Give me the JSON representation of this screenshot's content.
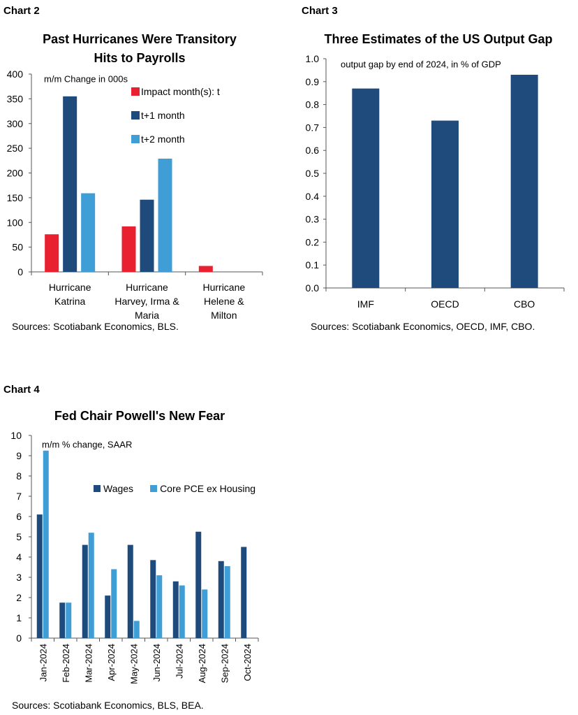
{
  "chart_data": [
    {
      "type": "bar",
      "label": "Chart 2",
      "title": "Past Hurricanes Were Transitory",
      "subtitle": "Hits to Payrolls",
      "ylabel": "m/m Change in 000s",
      "ylim": [
        0,
        400
      ],
      "yticks": [
        "0",
        "50",
        "100",
        "150",
        "200",
        "250",
        "300",
        "350",
        "400"
      ],
      "categories": [
        [
          "Hurricane",
          "Katrina"
        ],
        [
          "Hurricane",
          "Harvey, Irma &",
          "Maria"
        ],
        [
          "Hurricane",
          "Helene &",
          "Milton"
        ]
      ],
      "series": [
        {
          "name": "Impact month(s): t",
          "color": "#e8202f",
          "values": [
            76,
            92,
            12
          ]
        },
        {
          "name": "t+1 month",
          "color": "#1e4a7c",
          "values": [
            355,
            146,
            null
          ]
        },
        {
          "name": "t+2 month",
          "color": "#3f9ed5",
          "values": [
            159,
            229,
            null
          ]
        }
      ],
      "legend_position": "top-right",
      "source": "Sources: Scotiabank Economics, BLS."
    },
    {
      "type": "bar",
      "label": "Chart 3",
      "title": "Three Estimates of the US Output Gap",
      "ylabel": "output gap by end of 2024, in % of GDP",
      "ylim": [
        0,
        1.0
      ],
      "yticks": [
        "0.0",
        "0.1",
        "0.2",
        "0.3",
        "0.4",
        "0.5",
        "0.6",
        "0.7",
        "0.8",
        "0.9",
        "1.0"
      ],
      "categories": [
        "IMF",
        "OECD",
        "CBO"
      ],
      "series": [
        {
          "color": "#1e4a7c",
          "values": [
            0.87,
            0.73,
            0.93
          ]
        }
      ],
      "source": "Sources: Scotiabank Economics, OECD, IMF, CBO."
    },
    {
      "type": "bar",
      "label": "Chart 4",
      "title": "Fed Chair Powell's New Fear",
      "ylabel": "m/m % change, SAAR",
      "ylim": [
        0,
        10
      ],
      "yticks": [
        "0",
        "1",
        "2",
        "3",
        "4",
        "5",
        "6",
        "7",
        "8",
        "9",
        "10"
      ],
      "categories": [
        "Jan-2024",
        "Feb-2024",
        "Mar-2024",
        "Apr-2024",
        "May-2024",
        "Jun-2024",
        "Jul-2024",
        "Aug-2024",
        "Sep-2024",
        "Oct-2024"
      ],
      "series": [
        {
          "name": "Wages",
          "color": "#1e4a7c",
          "values": [
            6.1,
            1.75,
            4.6,
            2.1,
            4.6,
            3.85,
            2.8,
            5.25,
            3.8,
            4.5
          ]
        },
        {
          "name": "Core PCE ex Housing",
          "color": "#3f9ed5",
          "values": [
            9.25,
            1.75,
            5.2,
            3.4,
            0.85,
            3.1,
            2.6,
            2.4,
            3.55,
            null
          ]
        }
      ],
      "legend_position": "top-right",
      "source": "Sources: Scotiabank Economics, BLS, BEA."
    }
  ]
}
